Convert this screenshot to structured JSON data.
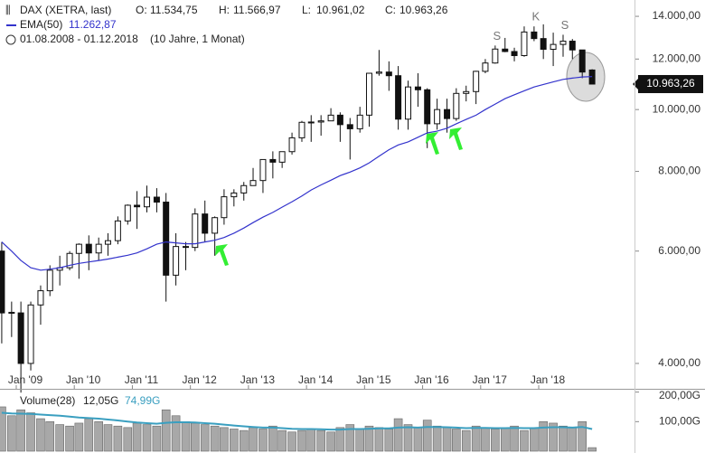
{
  "chart_data": [
    {
      "type": "candlestick",
      "title": "DAX (XETRA, last)",
      "ohlc_header": [
        {
          "key": "O:",
          "value": 11534.75,
          "label": "11.534,75"
        },
        {
          "key": "H:",
          "value": 11566.97,
          "label": "11.566,97"
        },
        {
          "key": "L:",
          "value": 10961.02,
          "label": "10.961,02"
        },
        {
          "key": "C:",
          "value": 10963.26,
          "label": "10.963,26"
        }
      ],
      "subtitle": "01.08.2008 - 01.12.2018",
      "period": "(10 Jahre, 1 Monat)",
      "log_scale": true,
      "x": [
        2008.75,
        2008.92,
        2009.08,
        2009.25,
        2009.42,
        2009.58,
        2009.75,
        2009.92,
        2010.08,
        2010.25,
        2010.42,
        2010.58,
        2010.75,
        2010.92,
        2011.08,
        2011.25,
        2011.42,
        2011.58,
        2011.75,
        2011.92,
        2012.08,
        2012.25,
        2012.42,
        2012.58,
        2012.75,
        2012.92,
        2013.08,
        2013.25,
        2013.42,
        2013.58,
        2013.75,
        2013.92,
        2014.08,
        2014.25,
        2014.42,
        2014.58,
        2014.75,
        2014.92,
        2015.08,
        2015.25,
        2015.42,
        2015.58,
        2015.75,
        2015.92,
        2016.08,
        2016.25,
        2016.42,
        2016.58,
        2016.75,
        2016.92,
        2017.08,
        2017.25,
        2017.42,
        2017.58,
        2017.75,
        2017.92,
        2018.08,
        2018.25,
        2018.42,
        2018.58,
        2018.75,
        2018.92
      ],
      "open": [
        6000,
        4800,
        4800,
        4000,
        4940,
        5200,
        5600,
        5650,
        5950,
        6150,
        5960,
        6150,
        6230,
        6690,
        7080,
        7040,
        7290,
        7160,
        5500,
        6100,
        6080,
        6860,
        6400,
        6770,
        7300,
        7400,
        7600,
        7740,
        8350,
        8270,
        8590,
        9030,
        9550,
        9560,
        9600,
        9800,
        9470,
        9330,
        9800,
        11400,
        11450,
        11300,
        9660,
        10850,
        10740,
        9500,
        10000,
        9680,
        10600,
        10670,
        11480,
        11830,
        12440,
        12330,
        12150,
        13230,
        12920,
        12430,
        12650,
        12800,
        12400,
        11534.75
      ],
      "high": [
        6200,
        5000,
        5000,
        5000,
        5300,
        5700,
        5900,
        6000,
        6170,
        6350,
        6300,
        6400,
        6800,
        7100,
        7450,
        7600,
        7530,
        7400,
        6400,
        6200,
        7000,
        7200,
        6800,
        7500,
        7500,
        7700,
        8100,
        8300,
        8600,
        8500,
        9200,
        9600,
        9800,
        9800,
        10050,
        9900,
        9700,
        10100,
        11400,
        12400,
        11900,
        11700,
        11100,
        11400,
        10800,
        10400,
        10400,
        10800,
        10900,
        11500,
        12000,
        12600,
        12950,
        12500,
        13500,
        13500,
        13600,
        13200,
        13100,
        12900,
        12400,
        11566.97
      ],
      "low": [
        4300,
        4400,
        3600,
        3900,
        4600,
        5100,
        5300,
        5600,
        5430,
        5600,
        5800,
        5900,
        6150,
        6600,
        6500,
        6900,
        6900,
        5000,
        5300,
        5600,
        6000,
        6200,
        5900,
        6600,
        7050,
        7200,
        7600,
        7400,
        7800,
        8100,
        8500,
        8900,
        8900,
        9100,
        9600,
        8900,
        8350,
        9200,
        9400,
        11300,
        10700,
        9300,
        9300,
        10100,
        8700,
        9300,
        9200,
        9600,
        10300,
        10200,
        11400,
        11800,
        12300,
        11900,
        12100,
        12800,
        12000,
        11700,
        12100,
        12000,
        11200,
        10961.02
      ],
      "close": [
        4800,
        4810,
        4000,
        4940,
        5200,
        5600,
        5650,
        5950,
        6150,
        5960,
        6150,
        6230,
        6690,
        7080,
        7040,
        7290,
        7160,
        5500,
        6100,
        6080,
        6860,
        6400,
        6770,
        7300,
        7400,
        7600,
        7740,
        8350,
        8270,
        8590,
        9030,
        9550,
        9560,
        9600,
        9800,
        9470,
        9330,
        9800,
        11400,
        11450,
        11300,
        9660,
        10850,
        10740,
        9500,
        10000,
        9680,
        10600,
        10670,
        11480,
        11830,
        12440,
        12330,
        12150,
        13230,
        12920,
        12430,
        12650,
        12800,
        12400,
        11450,
        10963.26
      ],
      "close_label": "10.963,26",
      "series": [
        {
          "name": "EMA(50)",
          "color": "#3333cc",
          "last_label": "11.262,87",
          "values": [
            6200,
            6000,
            5800,
            5650,
            5600,
            5620,
            5650,
            5700,
            5740,
            5770,
            5800,
            5830,
            5870,
            5910,
            5960,
            6050,
            6150,
            6200,
            6180,
            6160,
            6160,
            6200,
            6240,
            6300,
            6400,
            6520,
            6650,
            6780,
            6900,
            7030,
            7170,
            7320,
            7480,
            7620,
            7750,
            7880,
            7980,
            8100,
            8250,
            8450,
            8650,
            8800,
            8900,
            9050,
            9190,
            9250,
            9350,
            9500,
            9650,
            9800,
            10000,
            10200,
            10400,
            10550,
            10700,
            10850,
            10950,
            11050,
            11150,
            11200,
            11250,
            11262.87
          ]
        }
      ],
      "annotations": [
        "S",
        "K",
        "S"
      ],
      "xlim": [
        2008.72,
        2019.65
      ],
      "xticks": [
        {
          "value": 2009,
          "label": "Jan '09"
        },
        {
          "value": 2010,
          "label": "Jan '10"
        },
        {
          "value": 2011,
          "label": "Jan '11"
        },
        {
          "value": 2012,
          "label": "Jan '12"
        },
        {
          "value": 2013,
          "label": "Jan '13"
        },
        {
          "value": 2014,
          "label": "Jan '14"
        },
        {
          "value": 2015,
          "label": "Jan '15"
        },
        {
          "value": 2016,
          "label": "Jan '16"
        },
        {
          "value": 2017,
          "label": "Jan '17"
        },
        {
          "value": 2018,
          "label": "Jan '18"
        }
      ],
      "ylim": [
        3650,
        14850
      ],
      "yticks": [
        {
          "value": 4000,
          "label": "4.000,00"
        },
        {
          "value": 6000,
          "label": "6.000,00"
        },
        {
          "value": 8000,
          "label": "8.000,00"
        },
        {
          "value": 10000,
          "label": "10.000,00"
        },
        {
          "value": 12000,
          "label": "12.000,00"
        },
        {
          "value": 14000,
          "label": "14.000,00"
        }
      ]
    },
    {
      "type": "bar",
      "title": "Volume(28)",
      "color": "#a8a8a8",
      "values": [
        150,
        120,
        140,
        130,
        110,
        100,
        90,
        85,
        95,
        110,
        100,
        90,
        85,
        80,
        95,
        90,
        85,
        140,
        120,
        100,
        95,
        90,
        85,
        80,
        75,
        70,
        80,
        75,
        85,
        70,
        65,
        70,
        75,
        70,
        65,
        80,
        90,
        75,
        85,
        80,
        75,
        110,
        90,
        80,
        105,
        85,
        80,
        75,
        70,
        85,
        80,
        75,
        80,
        85,
        70,
        80,
        100,
        95,
        85,
        80,
        100,
        12.05
      ],
      "last_label": "12,05G",
      "series": [
        {
          "name": "EMA",
          "color": "#3a9fc0",
          "last_label": "74,99G",
          "values": [
            130,
            128,
            127,
            126,
            124,
            122,
            120,
            117,
            114,
            112,
            110,
            107,
            104,
            100,
            97,
            95,
            93,
            96,
            98,
            98,
            97,
            95,
            93,
            90,
            87,
            84,
            82,
            80,
            80,
            78,
            76,
            75,
            75,
            74,
            73,
            73,
            75,
            75,
            76,
            77,
            77,
            80,
            81,
            80,
            82,
            82,
            81,
            80,
            78,
            79,
            79,
            78,
            78,
            79,
            78,
            78,
            80,
            81,
            81,
            80,
            82,
            74.99
          ]
        }
      ],
      "xlim": [
        2008.72,
        2019.65
      ],
      "ylim": [
        0,
        205
      ],
      "yticks": [
        {
          "value": 100,
          "label": "100,00G"
        },
        {
          "value": 200,
          "label": "200,00G"
        }
      ]
    }
  ]
}
